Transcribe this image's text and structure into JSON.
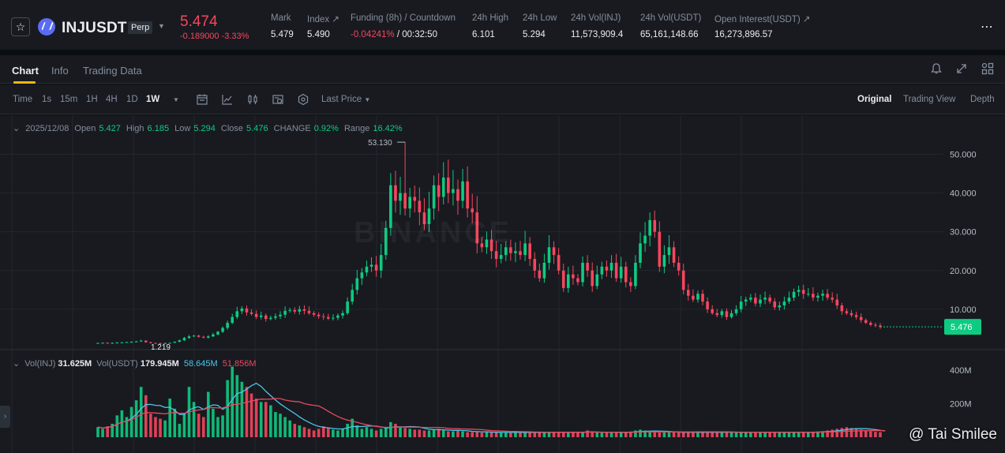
{
  "header": {
    "symbol": "INJUSDT",
    "contract_type": "Perp",
    "last_price": "5.474",
    "price_change": "-0.189000 -3.33%",
    "stats": [
      {
        "label": "Mark",
        "value": "5.479"
      },
      {
        "label": "Index ↗",
        "value": "5.490"
      },
      {
        "label": "Funding (8h) / Countdown",
        "value_neg": "-0.04241%",
        "value": " / 00:32:50"
      },
      {
        "label": "24h High",
        "value": "6.101"
      },
      {
        "label": "24h Low",
        "value": "5.294"
      },
      {
        "label": "24h Vol(INJ)",
        "value": "11,573,909.4"
      },
      {
        "label": "24h Vol(USDT)",
        "value": "65,161,148.66"
      },
      {
        "label": "Open Interest(USDT) ↗",
        "value": "16,273,896.57"
      }
    ],
    "more_icon": "⋯"
  },
  "tabs": [
    "Chart",
    "Info",
    "Trading Data"
  ],
  "toolbar": {
    "intervals": [
      "Time",
      "1s",
      "15m",
      "1H",
      "4H",
      "1D",
      "1W"
    ],
    "active_interval": "1W",
    "price_type": "Last Price",
    "views": [
      "Original",
      "Trading View",
      "Depth"
    ],
    "active_view": "Original"
  },
  "ohlc": {
    "date": "2025/12/08",
    "open_label": "Open",
    "open": "5.427",
    "high_label": "High",
    "high": "6.185",
    "low_label": "Low",
    "low": "5.294",
    "close_label": "Close",
    "close": "5.476",
    "change_label": "CHANGE",
    "change": "0.92%",
    "range_label": "Range",
    "range": "16.42%"
  },
  "volume_legend": {
    "label_inj": "Vol(INJ)",
    "value_inj": "31.625M",
    "label_usdt": "Vol(USDT)",
    "value_usdt": "179.945M",
    "ma1": "58.645M",
    "ma2": "51.856M"
  },
  "watermark": "BINANCE",
  "credit": "@ Tai Smilee",
  "colors": {
    "up": "#0ecb81",
    "down": "#f6465d",
    "accent": "#f0b90b",
    "ma_fast": "#4ec5e8",
    "ma_slow": "#e8495f",
    "panel": "#181a20"
  },
  "chart_data": {
    "type": "candlestick",
    "interval": "1W",
    "y_ticks": [
      "10.000",
      "20.000",
      "30.000",
      "40.000",
      "50.000"
    ],
    "y_range": [
      0,
      56
    ],
    "volume_ticks": [
      "200M",
      "400M"
    ],
    "max_label": "53.130",
    "min_label": "1.219",
    "last_close_label": "5.476",
    "closes": [
      1.3,
      1.35,
      1.28,
      1.32,
      1.4,
      1.45,
      1.52,
      1.6,
      1.7,
      1.9,
      1.5,
      1.3,
      1.25,
      1.22,
      1.28,
      1.35,
      1.6,
      2.0,
      2.6,
      3.0,
      3.2,
      2.9,
      2.7,
      3.0,
      3.5,
      4.2,
      5.2,
      6.5,
      8.0,
      9.5,
      10.2,
      9.2,
      8.8,
      8.0,
      8.4,
      7.5,
      7.8,
      8.2,
      8.6,
      9.6,
      9.8,
      9.4,
      10.0,
      9.6,
      9.0,
      8.6,
      8.2,
      8.0,
      7.6,
      7.8,
      8.4,
      9.0,
      12.0,
      15.0,
      18.0,
      19.5,
      21.0,
      21.5,
      20.0,
      24.0,
      31.0,
      42.0,
      38.0,
      40.0,
      36.0,
      39.0,
      38.0,
      35.0,
      32.0,
      36.0,
      42.0,
      39.0,
      44.0,
      40.0,
      41.0,
      38.0,
      43.0,
      36.0,
      35.0,
      27.0,
      26.0,
      28.0,
      25.0,
      23.0,
      24.0,
      26.0,
      24.5,
      25.0,
      24.0,
      27.0,
      23.0,
      20.0,
      18.0,
      22.0,
      26.0,
      24.0,
      20.0,
      15.5,
      19.0,
      18.0,
      17.0,
      22.0,
      20.0,
      16.0,
      19.0,
      21.0,
      20.0,
      22.0,
      18.0,
      21.0,
      17.0,
      16.0,
      22.0,
      27.0,
      29.0,
      33.0,
      30.0,
      21.0,
      24.0,
      26.0,
      22.0,
      20.0,
      15.0,
      13.5,
      12.5,
      14.0,
      12.0,
      10.0,
      9.0,
      8.5,
      9.5,
      8.0,
      9.0,
      10.0,
      12.0,
      12.5,
      13.0,
      11.5,
      12.5,
      13.0,
      12.0,
      10.5,
      11.0,
      12.0,
      13.0,
      14.5,
      15.0,
      14.0,
      14.0,
      13.0,
      13.5,
      14.0,
      13.0,
      12.5,
      11.0,
      9.5,
      9.0,
      8.5,
      8.0,
      7.2,
      6.5,
      6.0,
      5.8,
      5.476
    ],
    "volumes_m": [
      60,
      50,
      65,
      80,
      130,
      160,
      120,
      180,
      220,
      300,
      250,
      140,
      120,
      110,
      100,
      230,
      170,
      80,
      140,
      300,
      210,
      140,
      120,
      270,
      170,
      120,
      130,
      340,
      420,
      370,
      330,
      300,
      260,
      230,
      210,
      210,
      190,
      150,
      140,
      120,
      100,
      80,
      70,
      60,
      50,
      40,
      50,
      65,
      55,
      45,
      40,
      50,
      80,
      110,
      70,
      50,
      60,
      50,
      40,
      50,
      60,
      90,
      80,
      60,
      55,
      50,
      45,
      45,
      40,
      40,
      45,
      50,
      40,
      35,
      35,
      40,
      35,
      30,
      30,
      30,
      28,
      30,
      30,
      28,
      26,
      28,
      30,
      32,
      28,
      27,
      30,
      30,
      28,
      30,
      32,
      30,
      28,
      30,
      32,
      30,
      28,
      30,
      40,
      30,
      28,
      26,
      28,
      30,
      30,
      28,
      30,
      34,
      40,
      45,
      40,
      36,
      30,
      28,
      30,
      32,
      30,
      28,
      30,
      30,
      28,
      28,
      30,
      32,
      30,
      28,
      30,
      30,
      32,
      28,
      30,
      30,
      32,
      30,
      28,
      30,
      30,
      32,
      30,
      28,
      28,
      30,
      32,
      30,
      30,
      30,
      34,
      36,
      40,
      45,
      50,
      55,
      60,
      55,
      50,
      45,
      40,
      35,
      32,
      30,
      31.6
    ]
  }
}
